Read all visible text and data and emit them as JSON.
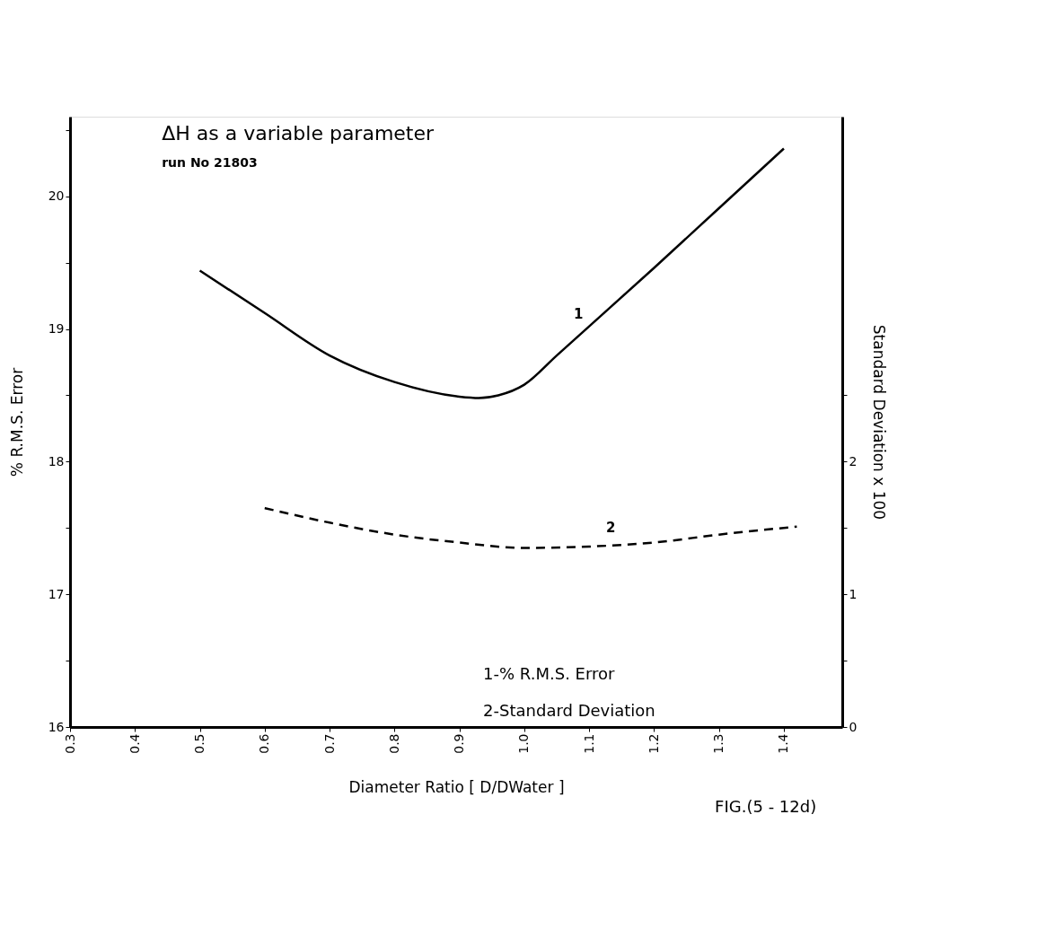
{
  "chart_data": {
    "type": "line",
    "title": "ΔH as a variable parameter",
    "subtitle": "run No 21803",
    "xlabel": "Diameter Ratio [ D/DWater ]",
    "ylabel": "%   R.M.S. Error",
    "y2label": "Standard Deviation x 100",
    "x": [
      0.5,
      0.6,
      0.7,
      0.8,
      0.9,
      0.93,
      0.96,
      1.0,
      1.05,
      1.1,
      1.2,
      1.3,
      1.4
    ],
    "series": [
      {
        "color": "#000000",
        "line_style": "solid",
        "values": [
          19.44,
          19.12,
          18.8,
          18.6,
          18.49,
          18.48,
          18.5,
          18.58,
          18.8,
          19.02,
          19.46,
          19.91,
          20.36
        ]
      },
      {
        "color": "#000000",
        "line_style": "dashed",
        "axis": "y2",
        "x": [
          0.6,
          0.7,
          0.8,
          0.9,
          1.0,
          1.1,
          1.2,
          1.3,
          1.42
        ],
        "values": [
          1.65,
          1.54,
          1.45,
          1.39,
          1.35,
          1.36,
          1.39,
          1.45,
          1.51
        ]
      }
    ],
    "xlim": [
      0.3,
      1.49
    ],
    "xticks": [
      0.3,
      0.4,
      0.5,
      0.6,
      0.7,
      0.8,
      0.9,
      {
        "value": 1.0,
        "label": "1.0"
      },
      1.1,
      1.2,
      1.3,
      1.4
    ],
    "ylim": [
      16,
      20.6
    ],
    "yticks": [
      16,
      {
        "value": 16.5,
        "label": null
      },
      17,
      {
        "value": 17.5,
        "label": null
      },
      18,
      {
        "value": 18.5,
        "label": null
      },
      19,
      {
        "value": 19.5,
        "label": null
      },
      20,
      {
        "value": 20.5,
        "label": null
      }
    ],
    "y2lim": [
      0,
      4.6
    ],
    "y2ticks": [
      0,
      {
        "value": 0.5,
        "label": null
      },
      1,
      {
        "value": 1.5,
        "label": null
      },
      2,
      {
        "value": 2.5,
        "label": null
      }
    ],
    "annotations": [
      {
        "text": "1",
        "x": 1.1,
        "y": 19.02
      },
      {
        "text": "2",
        "x": 1.15,
        "y": 17.41
      },
      "1-% R.M.S. Error",
      "2-Standard Deviation",
      "FIG.(5 - 12d)"
    ],
    "grid": false
  }
}
